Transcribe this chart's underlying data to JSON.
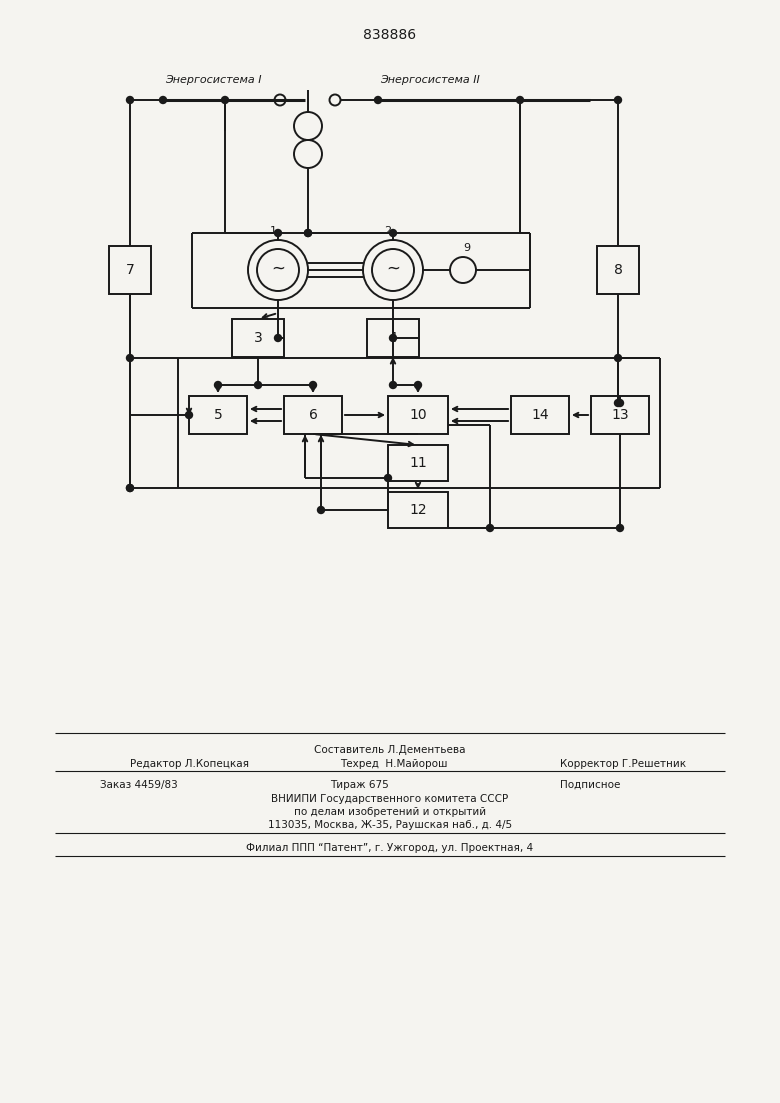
{
  "title": "838886",
  "bg_color": "#f5f4f0",
  "line_color": "#1a1a1a",
  "label_energo1": "Энергосистема I",
  "label_energo2": "Энергосистема II",
  "footer_sestavitel": "Составитель Л.Дементьева",
  "footer_redaktor": "Редактор Л.Копецкая",
  "footer_tehred": "Техред  Н.Майорош",
  "footer_korrektor": "Корректор Г.Решетник",
  "footer_zakaz": "Заказ 4459/83",
  "footer_tirazh": "Тираж 675",
  "footer_podpisnoe": "Подписное",
  "footer_vniipи": "ВНИИПИ Государственного комитета СССР",
  "footer_po_delam": "по делам изобретений и открытий",
  "footer_address": "113035, Москва, Ж-35, Раушская наб., д. 4/5",
  "footer_filial": "Филиал ППП “Патент”, г. Ужгород, ул. Проектная, 4"
}
